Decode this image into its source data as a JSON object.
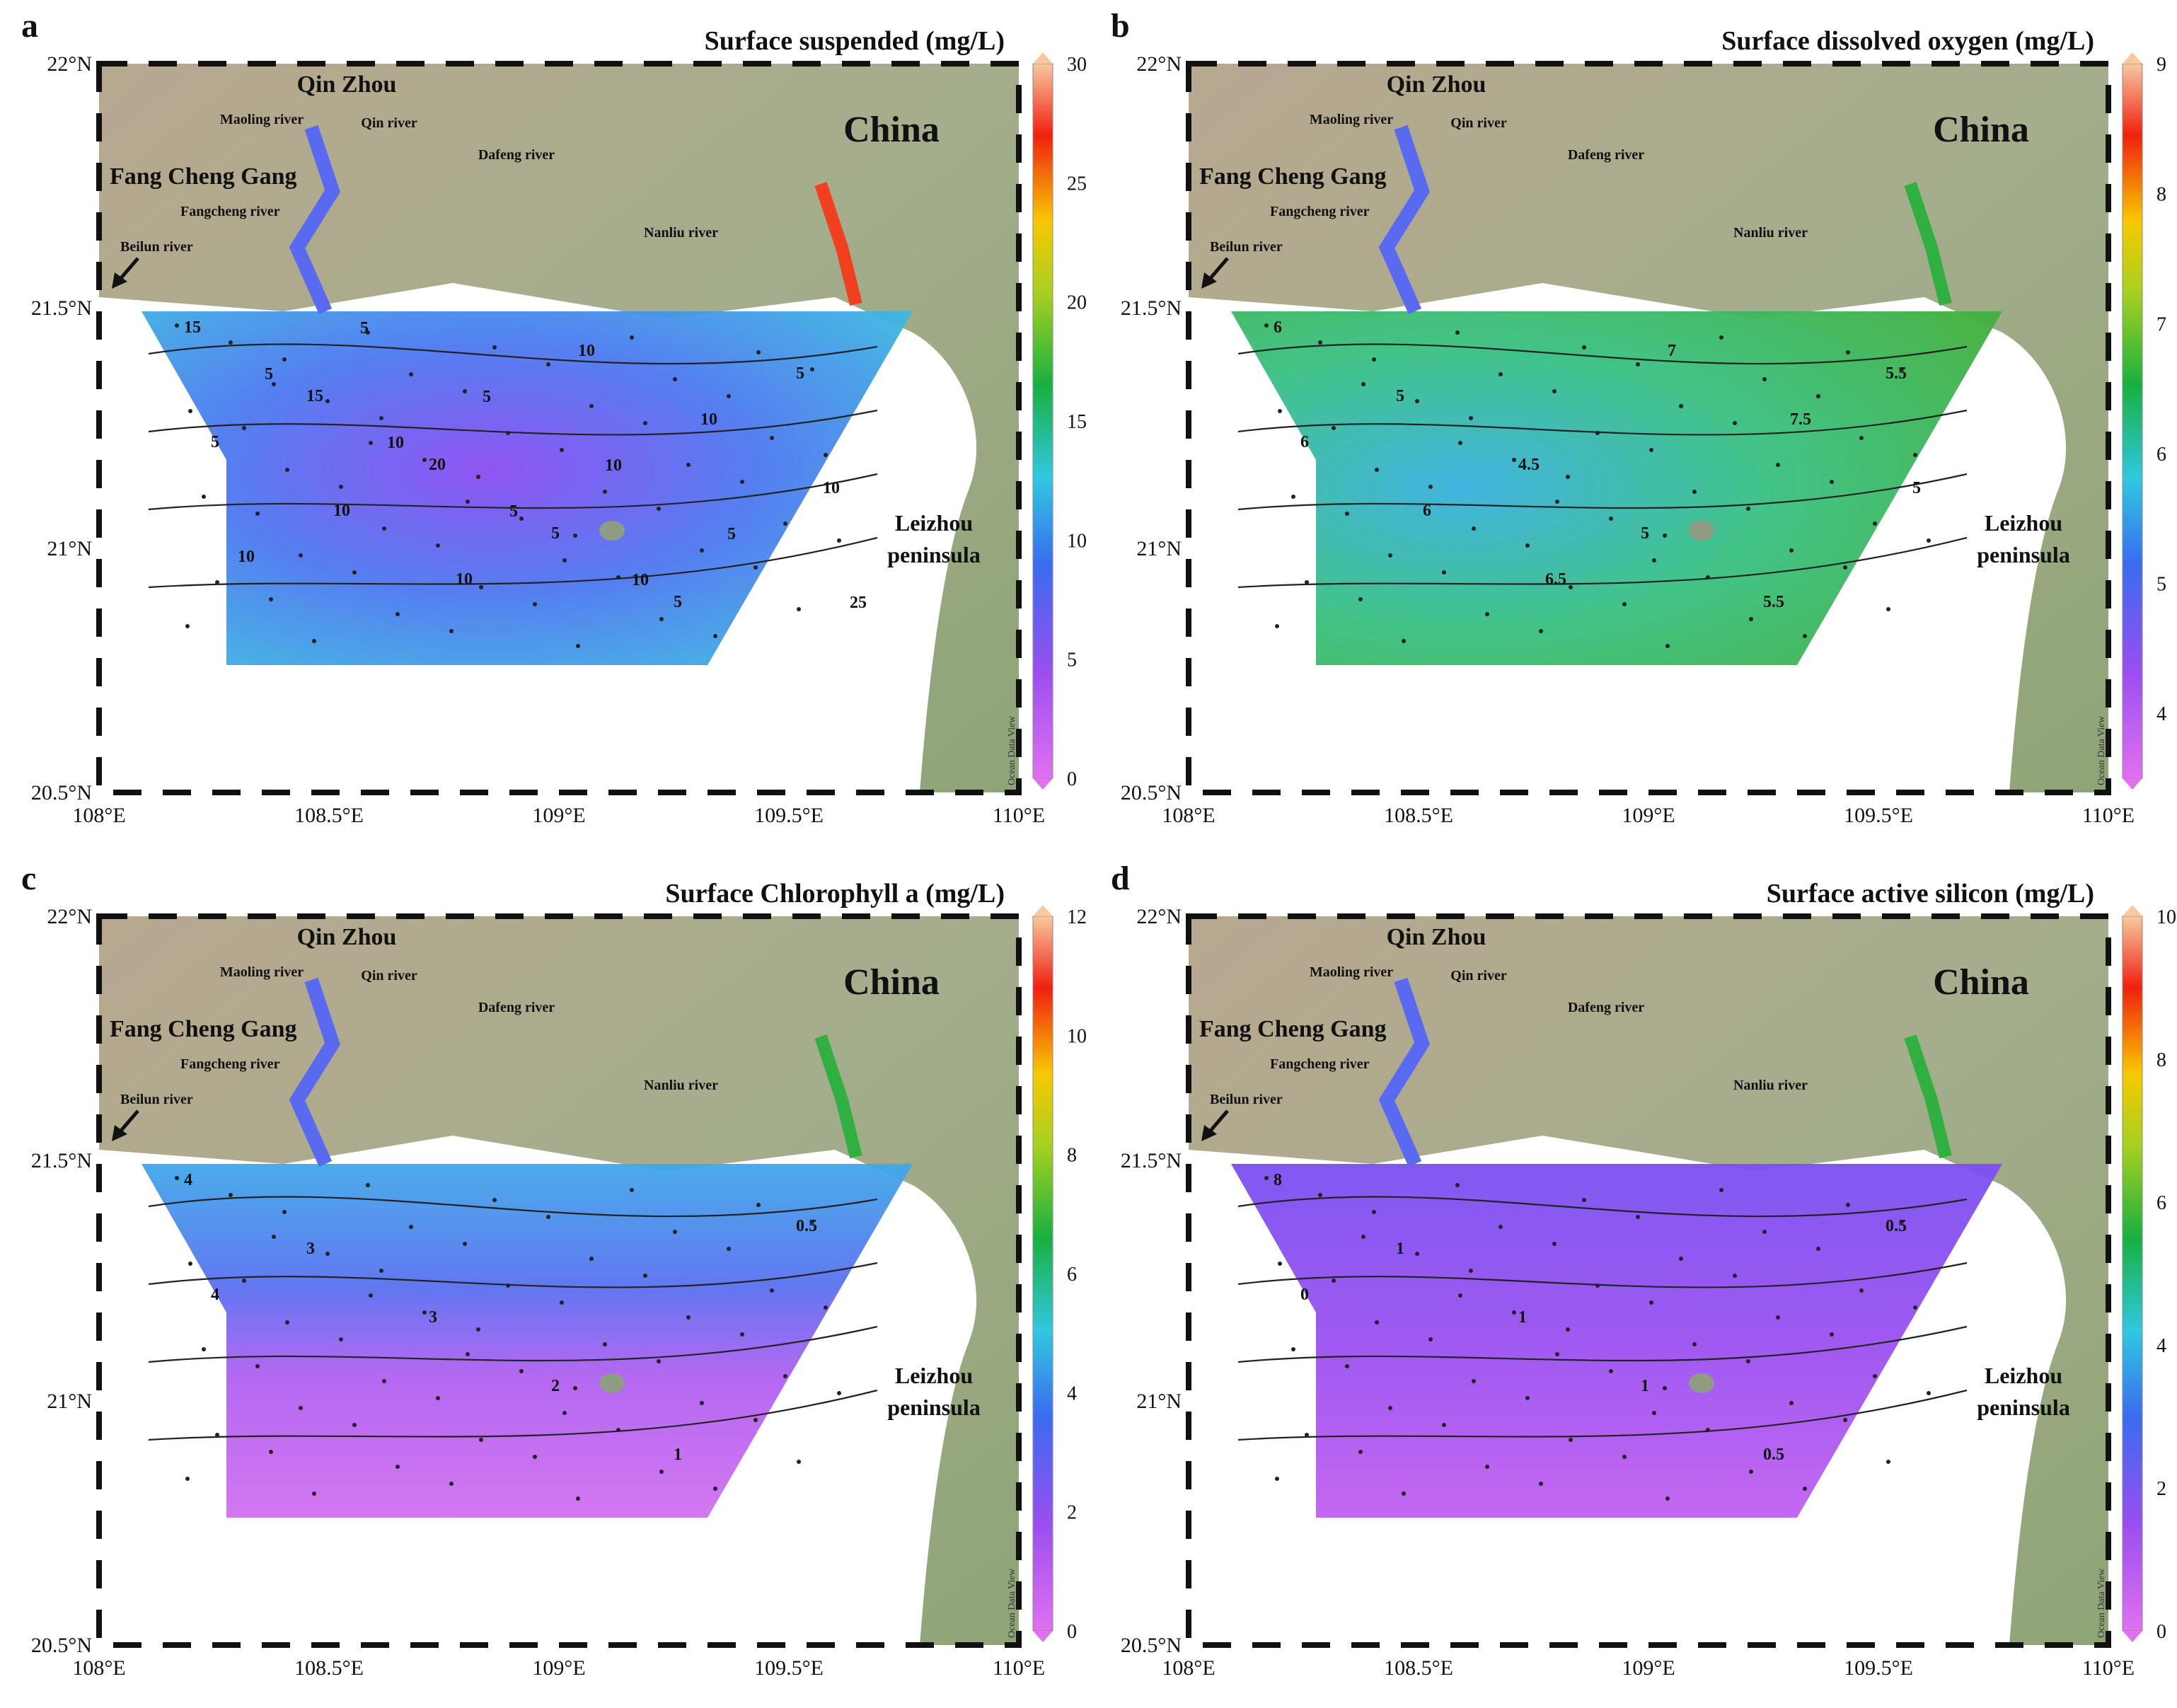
{
  "figure": {
    "panels": [
      {
        "letter": "a",
        "title": "Surface suspended (mg/L)",
        "colorbar": {
          "ticks": [
            "30",
            "25",
            "20",
            "15",
            "10",
            "5",
            "0"
          ],
          "min": 0,
          "max": 30
        },
        "contour_labels": [
          "15",
          "15",
          "20",
          "5",
          "5",
          "5",
          "5",
          "10",
          "10",
          "10",
          "10",
          "10",
          "10",
          "5",
          "5",
          "10",
          "5",
          "25",
          "5",
          "10",
          "5",
          "10"
        ],
        "field": "suspended"
      },
      {
        "letter": "b",
        "title": "Surface dissolved oxygen (mg/L)",
        "colorbar": {
          "ticks": [
            "9",
            "8",
            "7",
            "6",
            "5",
            "4"
          ],
          "min": 3.5,
          "max": 9
        },
        "contour_labels": [
          "6",
          "5",
          "4.5",
          "5",
          "5.5",
          "5.5",
          "6",
          "6",
          "6.5",
          "7",
          "7.5",
          "5"
        ],
        "field": "oxygen"
      },
      {
        "letter": "c",
        "title": "Surface Chlorophyll a (mg/L)",
        "colorbar": {
          "ticks": [
            "12",
            "10",
            "8",
            "6",
            "4",
            "2",
            "0"
          ],
          "min": 0,
          "max": 12
        },
        "contour_labels": [
          "4",
          "3",
          "3",
          "2",
          "1",
          "0.5",
          "4"
        ],
        "field": "chlorophyll"
      },
      {
        "letter": "d",
        "title": "Surface active silicon (mg/L)",
        "colorbar": {
          "ticks": [
            "10",
            "8",
            "6",
            "4",
            "2",
            "0"
          ],
          "min": 0,
          "max": 10
        },
        "contour_labels": [
          "8",
          "1",
          "1",
          "1",
          "0.5",
          "0.5",
          "0"
        ],
        "field": "silicon"
      }
    ],
    "place_labels": {
      "qinzhou": "Qin Zhou",
      "maoling": "Maoling river",
      "qin_river": "Qin river",
      "dafeng": "Dafeng river",
      "fangchenggang": "Fang Cheng Gang",
      "fangcheng_river": "Fangcheng river",
      "beilun": "Beilun river",
      "nanliu": "Nanliu river",
      "china": "China",
      "leizhou1": "Leizhou",
      "leizhou2": "peninsula"
    },
    "axes": {
      "y_ticks": [
        "22°N",
        "21.5°N",
        "21°N",
        "20.5°N"
      ],
      "x_ticks": [
        "108°E",
        "108.5°E",
        "109°E",
        "109.5°E",
        "110°E"
      ]
    },
    "watermark": "Ocean Data View"
  }
}
